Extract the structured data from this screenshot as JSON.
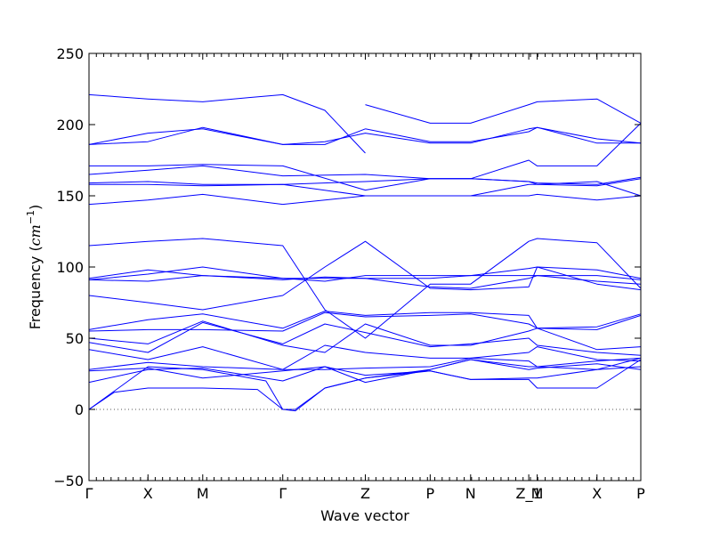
{
  "chart_data": {
    "type": "line",
    "title": "",
    "xlabel": "Wave vector",
    "ylabel": "Frequency (cm⁻¹)",
    "ylabel_main": "Frequency (",
    "ylabel_unit": "cm",
    "ylabel_exp": "−1",
    "ylabel_close": ")",
    "ylim": [
      -50,
      250
    ],
    "yticks": [
      -50,
      0,
      50,
      100,
      150,
      200,
      250
    ],
    "ytick_labels": [
      "−50",
      "0",
      "50",
      "100",
      "150",
      "200",
      "250"
    ],
    "xlim": [
      0,
      6.55
    ],
    "xticks": [
      0,
      0.7,
      1.35,
      2.3,
      3.28,
      4.05,
      4.53,
      5.22,
      5.32,
      6.03,
      6.55
    ],
    "xtick_labels": [
      "Γ",
      "X",
      "M",
      "Γ",
      "Z",
      "P",
      "N",
      "Z_1",
      "M",
      "X",
      "P"
    ],
    "grid": false,
    "zero_line": true,
    "line_color": "#0000ff",
    "series": [
      {
        "x": [
          0,
          0.7,
          1.35,
          1.9,
          2.3,
          2.8,
          3.28
        ],
        "y": [
          221,
          218,
          216,
          219,
          221,
          210,
          180
        ]
      },
      {
        "x": [
          3.28,
          4.05,
          4.53,
          5.22,
          5.32,
          6.03,
          6.55
        ],
        "y": [
          214,
          201,
          201,
          214,
          216,
          218,
          201
        ]
      },
      {
        "x": [
          0,
          0.7,
          1.35,
          2.3,
          2.8,
          3.28
        ],
        "y": [
          186,
          188,
          198,
          186,
          186,
          197
        ]
      },
      {
        "x": [
          3.28,
          4.05,
          4.53,
          5.22,
          5.32,
          6.03,
          6.55
        ],
        "y": [
          197,
          188,
          188,
          195,
          198,
          190,
          187
        ]
      },
      {
        "x": [
          0,
          0.7,
          1.35,
          2.3,
          2.8,
          3.28,
          4.05,
          4.53,
          5.22,
          5.32,
          6.03,
          6.55
        ],
        "y": [
          186,
          194,
          197,
          186,
          188,
          194,
          187,
          187,
          197,
          198,
          187,
          187
        ]
      },
      {
        "x": [
          0,
          0.7,
          1.35,
          2.3,
          3.28,
          4.05,
          4.53,
          5.22,
          5.32,
          6.03,
          6.55
        ],
        "y": [
          171,
          171,
          172,
          171,
          154,
          162,
          162,
          175,
          171,
          171,
          201
        ]
      },
      {
        "x": [
          0,
          0.7,
          1.35,
          2.3,
          3.28,
          4.05,
          4.53,
          5.22,
          5.32,
          6.03,
          6.55
        ],
        "y": [
          165,
          168,
          171,
          164,
          165,
          162,
          162,
          160,
          159,
          158,
          163
        ]
      },
      {
        "x": [
          0,
          0.7,
          1.35,
          2.3,
          3.28,
          4.05,
          4.53,
          5.22,
          5.32,
          6.03,
          6.55
        ],
        "y": [
          159,
          160,
          158,
          158,
          160,
          162,
          162,
          160,
          158,
          157,
          162
        ]
      },
      {
        "x": [
          0,
          0.7,
          1.35,
          2.3,
          3.28,
          4.05,
          4.53,
          5.22,
          5.32,
          6.03,
          6.55
        ],
        "y": [
          158,
          158,
          157,
          158,
          150,
          150,
          150,
          158,
          158,
          160,
          150
        ]
      },
      {
        "x": [
          0,
          0.7,
          1.35,
          2.3,
          2.8,
          3.28,
          4.05,
          4.53,
          5.22,
          5.32,
          6.03,
          6.55
        ],
        "y": [
          144,
          147,
          151,
          144,
          147,
          150,
          150,
          150,
          150,
          151,
          147,
          150
        ]
      },
      {
        "x": [
          0,
          0.7,
          1.35,
          2.3,
          2.8,
          3.28,
          4.05,
          4.53,
          5.22,
          5.32,
          6.03,
          6.55
        ],
        "y": [
          115,
          118,
          120,
          115,
          70,
          50,
          88,
          88,
          118,
          120,
          117,
          85
        ]
      },
      {
        "x": [
          0,
          0.7,
          1.35,
          2.3,
          2.8,
          3.28,
          4.05,
          4.53,
          5.22,
          5.32,
          6.03,
          6.55
        ],
        "y": [
          92,
          98,
          94,
          92,
          92,
          92,
          92,
          94,
          99,
          100,
          98,
          92
        ]
      },
      {
        "x": [
          0,
          0.7,
          1.35,
          2.3,
          2.8,
          3.28,
          4.05,
          4.53,
          5.22,
          5.32,
          6.03,
          6.55
        ],
        "y": [
          91,
          95,
          100,
          92,
          90,
          94,
          94,
          94,
          94,
          94,
          94,
          91
        ]
      },
      {
        "x": [
          0,
          0.7,
          1.35,
          2.3,
          2.8,
          3.28,
          4.05,
          4.53,
          5.22,
          5.32,
          6.03,
          6.55
        ],
        "y": [
          91,
          90,
          94,
          91,
          93,
          92,
          86,
          85,
          92,
          94,
          90,
          88
        ]
      },
      {
        "x": [
          0,
          0.7,
          1.35,
          2.3,
          2.8,
          3.28,
          4.05,
          4.53,
          5.22,
          5.32,
          6.03,
          6.55
        ],
        "y": [
          80,
          75,
          70,
          80,
          100,
          118,
          85,
          84,
          86,
          100,
          88,
          84
        ]
      },
      {
        "x": [
          0,
          0.7,
          1.35,
          2.3,
          2.8,
          3.28,
          4.05,
          4.53,
          5.22,
          5.32,
          6.03,
          6.55
        ],
        "y": [
          56,
          63,
          67,
          57,
          69,
          66,
          68,
          68,
          66,
          57,
          58,
          67
        ]
      },
      {
        "x": [
          0,
          0.7,
          1.35,
          2.3,
          2.8,
          3.28,
          4.05,
          4.53,
          5.22,
          5.32,
          6.03,
          6.55
        ],
        "y": [
          55,
          56,
          56,
          55,
          68,
          65,
          66,
          67,
          60,
          57,
          56,
          66
        ]
      },
      {
        "x": [
          0,
          0.7,
          1.35,
          2.3,
          2.8,
          3.28,
          4.05,
          4.53,
          5.22,
          5.32,
          6.03,
          6.55
        ],
        "y": [
          50,
          46,
          62,
          45,
          40,
          60,
          45,
          45,
          55,
          57,
          42,
          44
        ]
      },
      {
        "x": [
          0,
          0.7,
          1.35,
          2.3,
          2.8,
          3.28,
          4.05,
          4.53,
          5.22,
          5.32,
          6.03,
          6.55
        ],
        "y": [
          47,
          40,
          61,
          46,
          60,
          54,
          44,
          46,
          50,
          45,
          40,
          38
        ]
      },
      {
        "x": [
          0,
          0.7,
          1.35,
          2.3,
          2.8,
          3.28,
          4.05,
          4.53,
          5.22,
          5.32,
          6.03,
          6.55
        ],
        "y": [
          42,
          35,
          44,
          28,
          45,
          40,
          36,
          36,
          40,
          44,
          35,
          34
        ]
      },
      {
        "x": [
          0,
          0.7,
          1.35,
          2.3,
          2.8,
          3.28,
          4.05,
          4.53,
          5.22,
          5.32,
          6.03,
          6.55
        ],
        "y": [
          28,
          33,
          30,
          28,
          28,
          29,
          30,
          36,
          34,
          30,
          34,
          36
        ]
      },
      {
        "x": [
          0,
          0.7,
          1.35,
          2.3,
          2.8,
          3.28,
          4.05,
          4.53,
          5.22,
          5.32,
          6.03,
          6.55
        ],
        "y": [
          27,
          29,
          22,
          27,
          30,
          19,
          28,
          35,
          28,
          29,
          32,
          28
        ]
      },
      {
        "x": [
          0,
          0.7,
          1.35,
          2.3,
          2.8,
          3.28,
          4.05,
          4.53,
          5.22,
          5.32,
          6.03,
          6.55
        ],
        "y": [
          19,
          28,
          29,
          20,
          30,
          24,
          27,
          21,
          22,
          22,
          28,
          30
        ]
      },
      {
        "x": [
          0,
          0.7,
          1.35,
          2.1,
          2.3,
          2.45,
          2.8,
          3.28,
          4.05,
          4.53,
          5.22,
          5.32,
          6.03,
          6.55
        ],
        "y": [
          0,
          30,
          28,
          20,
          0,
          0,
          15,
          22,
          27,
          21,
          21,
          15,
          15,
          35
        ]
      },
      {
        "x": [
          0,
          0.3,
          0.7,
          1.35,
          2.0,
          2.3,
          2.45,
          2.8,
          3.28,
          4.05,
          4.53,
          5.22,
          5.32,
          6.03,
          6.55
        ],
        "y": [
          0,
          12,
          15,
          15,
          14,
          0,
          -1,
          15,
          22,
          28,
          35,
          30,
          30,
          28,
          36
        ]
      }
    ]
  }
}
